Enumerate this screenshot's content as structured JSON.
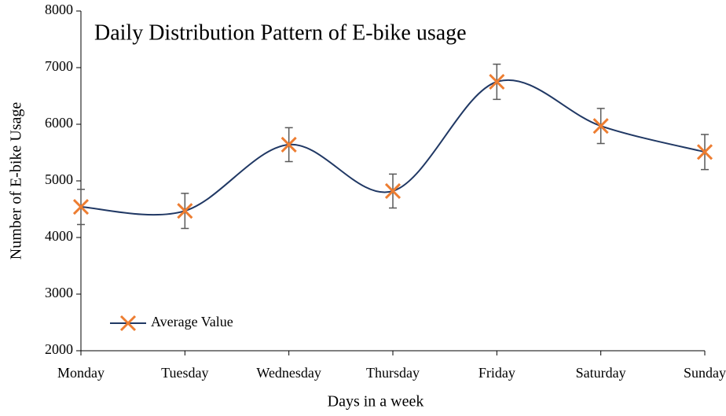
{
  "chart_data": {
    "type": "line",
    "title": "Daily Distribution Pattern of E-bike usage",
    "xlabel": "Days in a week",
    "ylabel": "Number of E-bike Usage",
    "categories": [
      "Monday",
      "Tuesday",
      "Wednesday",
      "Thursday",
      "Friday",
      "Saturday",
      "Sunday"
    ],
    "series": [
      {
        "name": "Average Value",
        "color": "#203864",
        "marker_color": "#ed7d31",
        "values": [
          4540,
          4470,
          5640,
          4820,
          6750,
          5970,
          5510
        ],
        "errors": [
          310,
          310,
          300,
          300,
          310,
          310,
          310
        ]
      }
    ],
    "error_color": "#595959",
    "ylim": [
      2000,
      8000
    ],
    "yticks": [
      2000,
      3000,
      4000,
      5000,
      6000,
      7000,
      8000
    ],
    "grid": false,
    "smooth": true,
    "legend": "lower left"
  }
}
